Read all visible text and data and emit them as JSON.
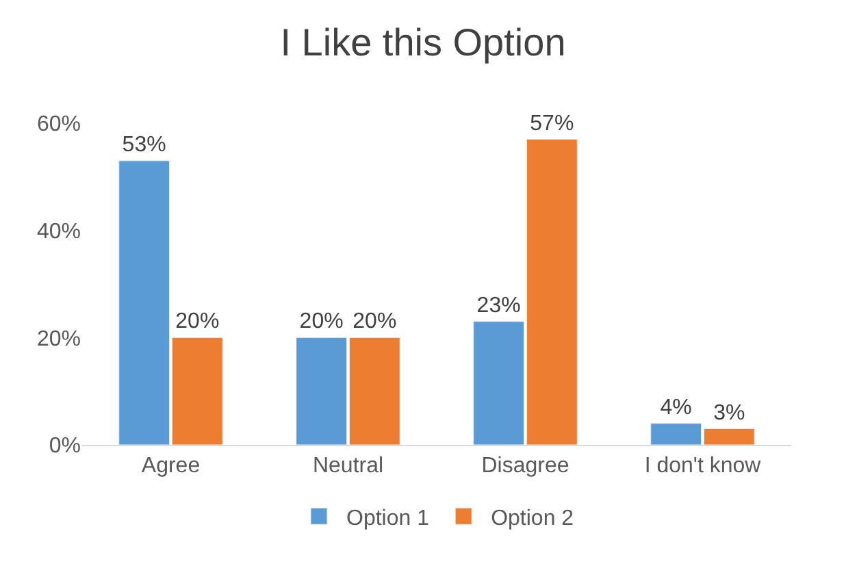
{
  "chart_data": {
    "type": "bar",
    "title": "I Like this Option",
    "categories": [
      "Agree",
      "Neutral",
      "Disagree",
      "I don't know"
    ],
    "series": [
      {
        "name": "Option 1",
        "color": "#5b9bd5",
        "values": [
          53,
          20,
          23,
          4
        ],
        "value_labels": [
          "53%",
          "20%",
          "23%",
          "4%"
        ]
      },
      {
        "name": "Option 2",
        "color": "#ed7d31",
        "values": [
          20,
          20,
          57,
          3
        ],
        "value_labels": [
          "20%",
          "20%",
          "57%",
          "3%"
        ]
      }
    ],
    "ylim": [
      0,
      60
    ],
    "yticks": [
      {
        "value": 0,
        "label": "0%"
      },
      {
        "value": 20,
        "label": "20%"
      },
      {
        "value": 40,
        "label": "40%"
      },
      {
        "value": 60,
        "label": "60%"
      }
    ],
    "legend": "bottom"
  }
}
